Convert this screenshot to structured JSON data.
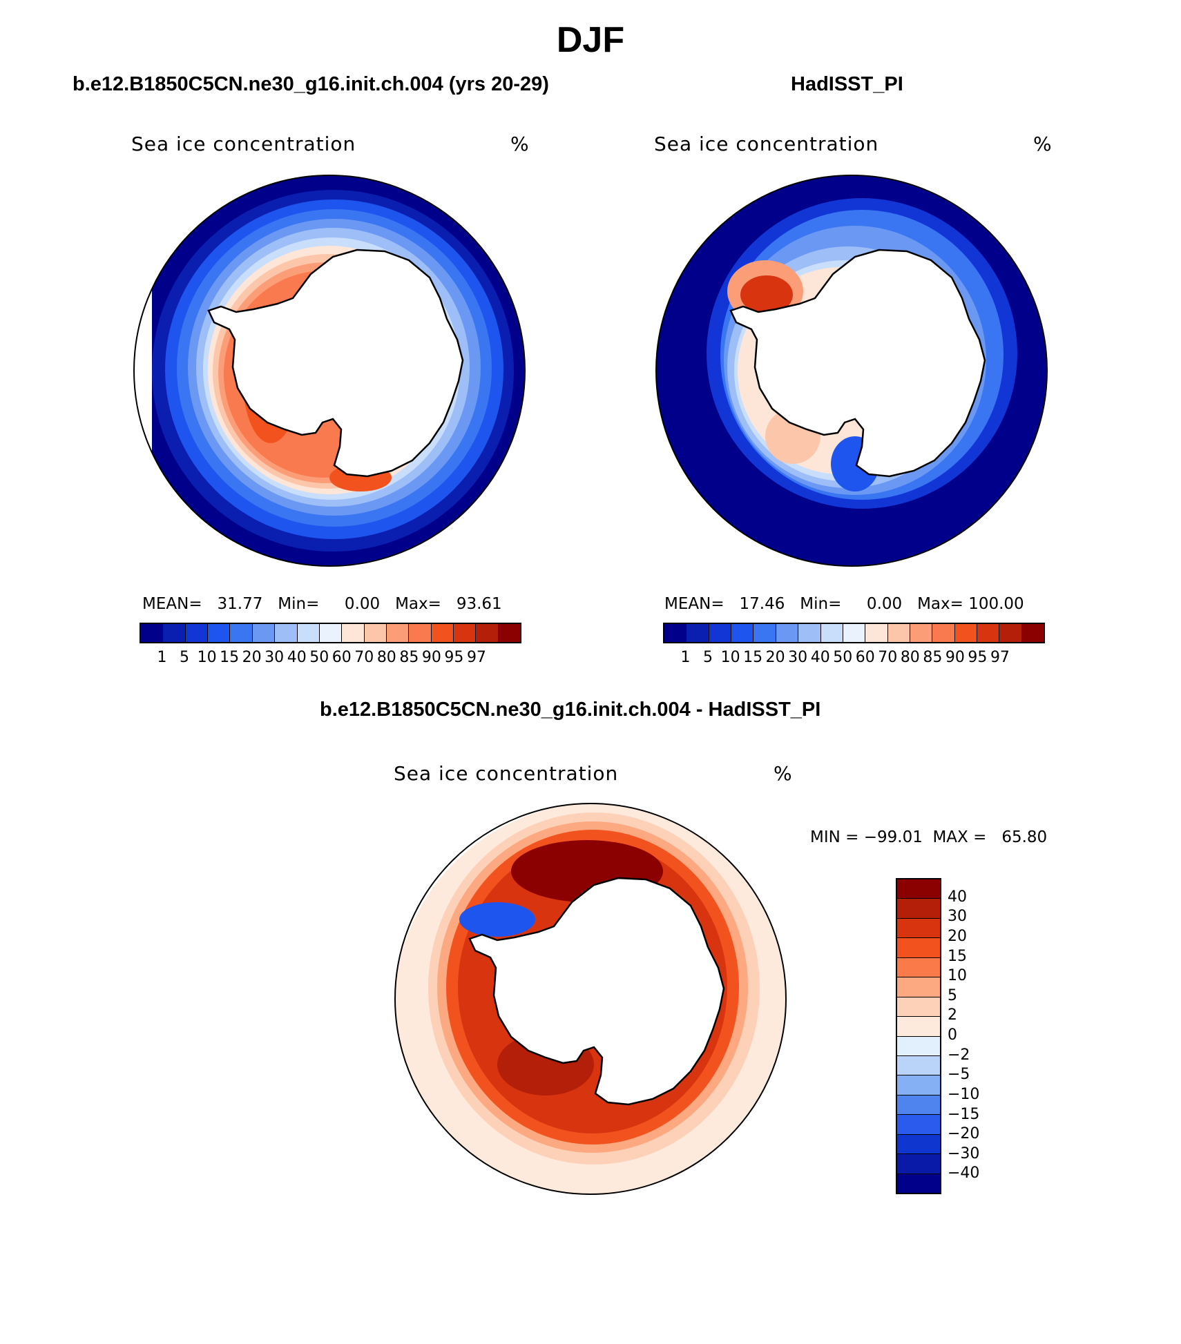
{
  "title": "DJF",
  "panels": {
    "model": {
      "case_title": "b.e12.B1850C5CN.ne30_g16.init.ch.004 (yrs 20-29)",
      "variable": "Sea ice concentration",
      "units": "%",
      "stats": "MEAN=   31.77   Min=     0.00   Max=   93.61",
      "mean": 31.77,
      "min": 0.0,
      "max": 93.61
    },
    "obs": {
      "case_title": "HadISST_PI",
      "variable": "Sea ice concentration",
      "units": "%",
      "stats": "MEAN=   17.46   Min=     0.00   Max= 100.00",
      "mean": 17.46,
      "min": 0.0,
      "max": 100.0
    },
    "diff": {
      "case_title": "b.e12.B1850C5CN.ne30_g16.init.ch.004 - HadISST_PI",
      "variable": "Sea ice concentration",
      "units": "%",
      "stats": "MIN = −99.01  MAX =   65.80",
      "min": -99.01,
      "max": 65.8
    }
  },
  "colorbar_abs": {
    "levels": [
      "1",
      "5",
      "10",
      "15",
      "20",
      "30",
      "40",
      "50",
      "60",
      "70",
      "80",
      "85",
      "90",
      "95",
      "97"
    ],
    "colors": [
      "#00008b",
      "#0a1fb0",
      "#1236d6",
      "#1e55ee",
      "#3a75f2",
      "#6b98f2",
      "#9dbef7",
      "#c9defa",
      "#eaf3fd",
      "#fde6d8",
      "#fcc6ab",
      "#fb9e78",
      "#f97a4e",
      "#f2531e",
      "#d93410",
      "#b31f08",
      "#8b0000"
    ]
  },
  "colorbar_diff": {
    "levels": [
      "40",
      "30",
      "20",
      "15",
      "10",
      "5",
      "2",
      "0",
      "−2",
      "−5",
      "−10",
      "−15",
      "−20",
      "−30",
      "−40"
    ],
    "colors": [
      "#8b0000",
      "#b31f08",
      "#d93410",
      "#f2531e",
      "#fb7a4a",
      "#fca880",
      "#fdd0b8",
      "#fdeadc",
      "#e2effc",
      "#b9d4f8",
      "#86b0f4",
      "#4f84ef",
      "#2a5bec",
      "#1036d0",
      "#0a1aa8",
      "#00008b"
    ]
  }
}
